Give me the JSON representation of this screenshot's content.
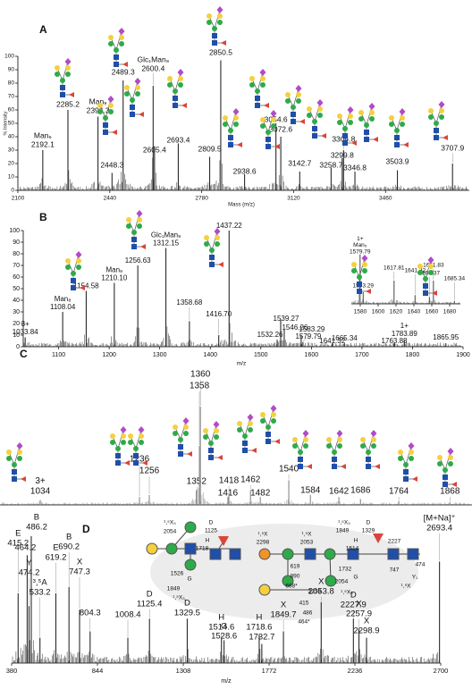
{
  "chart_data": [
    {
      "type": "spectrum",
      "panel": "A",
      "xlabel": "Mass (m/z)",
      "ylabel": "% Intensity",
      "color": "#2a2a2a",
      "x": [
        2192.1,
        2285.2,
        2396.3,
        2448.3,
        2489.3,
        2600.4,
        2605.4,
        2693.4,
        2809.5,
        2850.5,
        2938.6,
        3054.6,
        3072.6,
        3142.7,
        3258.7,
        3299.8,
        3304.8,
        3346.8,
        3503.9,
        3707.9
      ],
      "values": [
        30,
        60,
        55,
        13,
        82,
        78,
        33,
        35,
        25,
        97,
        12,
        50,
        40,
        14,
        17,
        24,
        30,
        14,
        15,
        20
      ],
      "annotations": [
        [
          "Man₆"
        ],
        null,
        [
          "Man₉"
        ],
        null,
        null,
        [
          "Glc₁Man₉"
        ],
        null,
        null,
        null,
        null,
        null,
        null,
        null,
        null,
        null,
        null,
        null,
        null,
        null,
        null
      ],
      "xlim": [
        2100,
        3770
      ],
      "xticks": [
        2100,
        2440,
        2780,
        3120,
        3460
      ],
      "ylim": [
        0,
        100
      ],
      "yticks": [
        0,
        10,
        20,
        30,
        40,
        50,
        60,
        70,
        80,
        90,
        100
      ]
    },
    {
      "type": "spectrum",
      "panel": "B",
      "xlabel": "m/z",
      "color": "#2a2a2a",
      "x": [
        1033.84,
        1108.04,
        1154.58,
        1210.1,
        1256.63,
        1312.15,
        1358.68,
        1416.7,
        1437.22,
        1532.26,
        1539.27,
        1546.26,
        1579.79,
        1583.29,
        1641.32,
        1665.34,
        1763.88,
        1783.89,
        1865.95
      ],
      "x_labels": [
        "1033.84",
        "1108.04",
        "1154.58",
        "1210.10",
        "1256.63",
        "1312.15",
        "1358.68",
        "1416.70",
        "1437.22",
        "1532.26",
        "1539.27",
        "1546.26",
        "1579.79",
        "1583.29",
        "1641.32",
        "1665.34",
        "1763.88",
        "1783.89",
        "1865.95"
      ],
      "values": [
        8,
        30,
        48,
        55,
        70,
        85,
        22,
        10,
        100,
        6,
        23,
        15,
        10,
        4,
        3,
        3,
        3,
        5,
        3
      ],
      "annotations": [
        [
          "3+"
        ],
        [
          "Man₈"
        ],
        null,
        [
          "Man₉"
        ],
        null,
        [
          "Glc₁Man₉"
        ],
        null,
        null,
        null,
        null,
        null,
        null,
        null,
        null,
        null,
        null,
        null,
        [
          "1+"
        ],
        null
      ],
      "xlim": [
        1030,
        1900
      ],
      "xticks": [
        1100,
        1200,
        1300,
        1400,
        1500,
        1600,
        1700,
        1800,
        1900
      ],
      "ylim": [
        0,
        100
      ],
      "yticks": [
        0,
        10,
        20,
        30,
        40,
        50,
        60,
        70,
        80,
        90,
        100
      ]
    },
    {
      "type": "spectrum",
      "color": "#555555",
      "x": [
        1579.79,
        1583.29,
        1617.81,
        1641.32,
        1657.37,
        1661.83,
        1685.34
      ],
      "x_labels": [
        "1579.79",
        "1583.29",
        "1617.81",
        "1641.32",
        "1657.37",
        "1661.83",
        "1685.34"
      ],
      "values": [
        85,
        20,
        40,
        15,
        12,
        40,
        5
      ],
      "annotations": [
        [
          "1+",
          "Man₅"
        ],
        null,
        null,
        null,
        null,
        null,
        null
      ],
      "xlim": [
        1570,
        1692
      ],
      "xticks": [
        1580,
        1600,
        1620,
        1640,
        1660,
        1680
      ],
      "ylim": [
        0,
        100
      ]
    },
    {
      "type": "spectrum",
      "panel": "C",
      "color": "#8a8a8a",
      "x": [
        1034,
        1236,
        1256,
        1352,
        1358,
        1360,
        1416,
        1418,
        1462,
        1482,
        1540,
        1584,
        1642,
        1686,
        1764,
        1868
      ],
      "values": [
        5,
        8,
        10,
        15,
        60,
        100,
        8,
        12,
        15,
        8,
        25,
        10,
        8,
        6,
        4,
        3
      ],
      "annotations": [
        [
          "3+"
        ],
        null,
        null,
        null,
        null,
        null,
        null,
        null,
        null,
        null,
        null,
        null,
        null,
        null,
        null,
        null
      ],
      "xlim": [
        952,
        1913
      ],
      "ylim": [
        0,
        100
      ]
    },
    {
      "type": "spectrum",
      "panel": "D",
      "xlabel": "m/z",
      "color": "#2a2a2a",
      "x": [
        415.2,
        464.2,
        474.2,
        486.2,
        533.2,
        619.2,
        690.2,
        747.3,
        804.3,
        1008.4,
        1125.4,
        1329.5,
        1514.6,
        1528.6,
        1718.6,
        1732.7,
        1849.7,
        2053.8,
        2227.9,
        2257.9,
        2298.9,
        2693.4
      ],
      "values": [
        55,
        85,
        45,
        100,
        20,
        55,
        60,
        42,
        25,
        20,
        35,
        35,
        20,
        18,
        22,
        15,
        25,
        48,
        35,
        27,
        20,
        80
      ],
      "annotations": [
        [
          "E"
        ],
        null,
        [
          "Y"
        ],
        [
          "B"
        ],
        [
          "³,⁵A"
        ],
        [
          "E"
        ],
        [
          "B"
        ],
        [
          "X"
        ],
        null,
        null,
        [
          "D"
        ],
        [
          "D"
        ],
        [
          "H"
        ],
        [
          "G"
        ],
        [
          "H"
        ],
        null,
        [
          "X"
        ],
        [
          "X"
        ],
        [
          "D"
        ],
        [
          "X"
        ],
        [
          "X"
        ],
        [
          "[M+Na]⁺"
        ]
      ],
      "xlim": [
        380,
        2700
      ],
      "xticks": [
        380,
        844,
        1308,
        1772,
        2236,
        2700
      ],
      "ylim": [
        0,
        100
      ],
      "inset_labels": [
        "¹,⁵X₃",
        "2054",
        "D",
        "1125",
        "H",
        "1718",
        "1526",
        "G",
        "1849",
        "¹,⁵X₃",
        "¹,⁵X",
        "2298",
        "¹,⁵X",
        "2053",
        "¹,⁵X₃",
        "1849",
        "H",
        "1514",
        "D",
        "1329",
        "2227",
        "474",
        "747",
        "Y₁",
        "¹,⁵X",
        "619",
        "890",
        "668*",
        "2258",
        "1732",
        "2054",
        "¹,⁵X₃",
        "415",
        "486",
        "464*",
        "G"
      ]
    }
  ]
}
